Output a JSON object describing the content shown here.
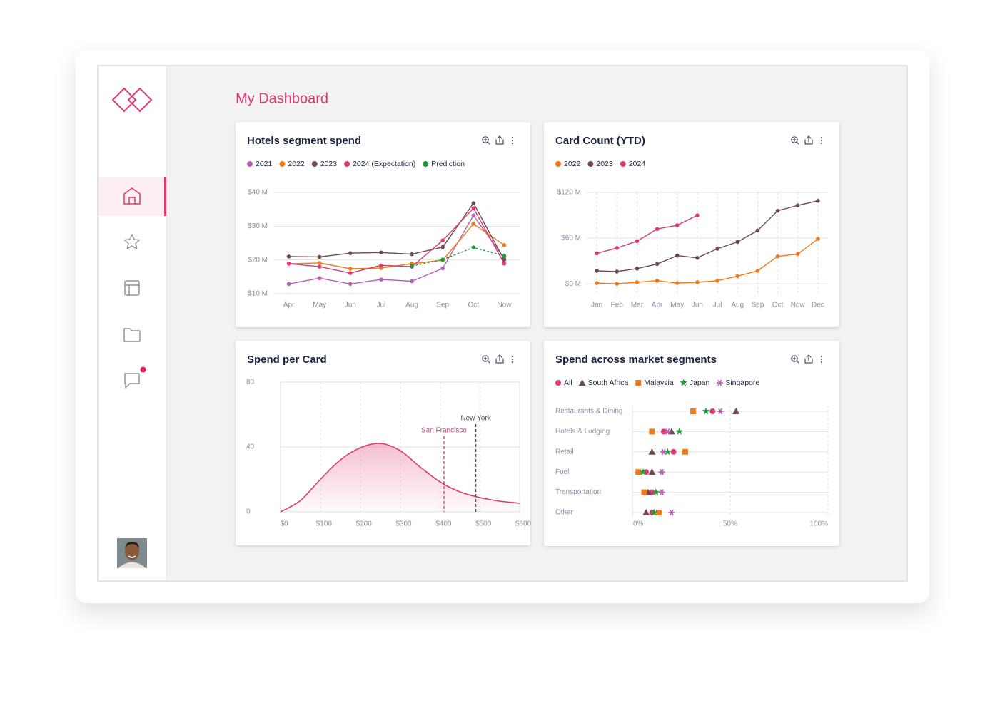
{
  "header": {
    "title": "My Dashboard"
  },
  "chart_data": [
    {
      "type": "line",
      "title": "Hotels segment spend",
      "categories": [
        "Apr",
        "May",
        "Jun",
        "Jul",
        "Aug",
        "Sep",
        "Oct",
        "Now"
      ],
      "series": [
        {
          "name": "2021",
          "color": "#b560b0",
          "values": [
            12.9,
            14.6,
            12.9,
            14.2,
            13.7,
            17.5,
            33.2,
            20.5
          ]
        },
        {
          "name": "2022",
          "color": "#f07a1a",
          "values": [
            18.9,
            19.1,
            17.4,
            17.6,
            18.9,
            19.9,
            30.7,
            24.4
          ]
        },
        {
          "name": "2023",
          "color": "#6e4a53",
          "values": [
            21,
            20.9,
            22,
            22.2,
            21.7,
            23.8,
            36.8,
            20
          ]
        },
        {
          "name": "2024 (Expectation)",
          "color": "#de3a72",
          "values": [
            18.9,
            18,
            16.1,
            18.4,
            18,
            25.8,
            35.3,
            18.9
          ]
        },
        {
          "name": "Prediction",
          "color": "#1f9e35",
          "dashed": true,
          "values": [
            null,
            null,
            null,
            null,
            18.2,
            20.1,
            23.7,
            21.2
          ]
        }
      ],
      "ylim": [
        10,
        40
      ],
      "yticks": [
        {
          "value": 10,
          "label": "$10 M"
        },
        {
          "value": 20,
          "label": "$20 M"
        },
        {
          "value": 30,
          "label": "$30 M"
        },
        {
          "value": 40,
          "label": "$40 M"
        }
      ],
      "grid": true
    },
    {
      "type": "line",
      "title": "Card Count (YTD)",
      "categories": [
        "Jan",
        "Feb",
        "Mar",
        "Apr",
        "May",
        "Jun",
        "Jul",
        "Aug",
        "Sep",
        "Oct",
        "Now",
        "Dec"
      ],
      "series": [
        {
          "name": "2022",
          "color": "#f07a1a",
          "values": [
            1,
            0,
            2,
            4,
            1,
            2,
            4,
            10,
            17,
            36,
            39,
            59
          ]
        },
        {
          "name": "2023",
          "color": "#6e4a53",
          "values": [
            17,
            16,
            20,
            26,
            37,
            34,
            46,
            55,
            70,
            96,
            103,
            109
          ]
        },
        {
          "name": "2024",
          "color": "#de3a72",
          "values": [
            40,
            47,
            56,
            72,
            77,
            90,
            null,
            null,
            null,
            null,
            null,
            null
          ]
        }
      ],
      "ylim": [
        -13,
        120
      ],
      "yticks": [
        {
          "value": 0,
          "label": "$0 M"
        },
        {
          "value": 60,
          "label": "$60 M"
        },
        {
          "value": 120,
          "label": "$120 M"
        }
      ],
      "grid": true,
      "xgrid": true
    },
    {
      "type": "area",
      "title": "Spend per Card",
      "x": [
        0,
        50,
        100,
        150,
        200,
        250,
        300,
        350,
        400,
        450,
        500,
        550,
        600
      ],
      "values": [
        0,
        7,
        20,
        32,
        39.5,
        42.2,
        37.8,
        27.7,
        18.5,
        12.3,
        8.8,
        6.6,
        5.3
      ],
      "color": "#de3a72",
      "xlim": [
        0,
        600
      ],
      "xticks": [
        {
          "value": 0,
          "label": "$0"
        },
        {
          "value": 100,
          "label": "$100"
        },
        {
          "value": 200,
          "label": "$200"
        },
        {
          "value": 300,
          "label": "$300"
        },
        {
          "value": 400,
          "label": "$400"
        },
        {
          "value": 500,
          "label": "$500"
        },
        {
          "value": 600,
          "label": "$600"
        }
      ],
      "ylim": [
        0,
        80
      ],
      "yticks": [
        0,
        40,
        80
      ],
      "grid": true,
      "annotations": [
        {
          "label": "San Francisco",
          "x": 410,
          "color": "#de3a72"
        },
        {
          "label": "New York",
          "x": 490,
          "color": "#5a4a50"
        }
      ]
    },
    {
      "type": "scatter",
      "title": "Spend across market segments",
      "categories": [
        "Restaurants & Dining",
        "Hotels & Lodging",
        "Retail",
        "Fuel",
        "Transportation",
        "Other"
      ],
      "series": [
        {
          "name": "All",
          "color": "#de3a72",
          "marker": "circle",
          "values": [
            41,
            16,
            21,
            7,
            10,
            10
          ]
        },
        {
          "name": "South Africa",
          "color": "#6e4a53",
          "marker": "triangle",
          "values": [
            53,
            20,
            10,
            10,
            8,
            7
          ]
        },
        {
          "name": "Malaysia",
          "color": "#f07a1a",
          "marker": "square",
          "values": [
            31,
            10,
            27,
            3,
            6,
            13.5
          ]
        },
        {
          "name": "Japan",
          "color": "#1f9e35",
          "marker": "star",
          "values": [
            37.6,
            24,
            18,
            5.5,
            12,
            11
          ]
        },
        {
          "name": "Singapore",
          "color": "#b560b0",
          "marker": "asterisk",
          "values": [
            45,
            18,
            16,
            15,
            15,
            20
          ]
        }
      ],
      "xlim": [
        0,
        100
      ],
      "xticks": [
        {
          "value": 0,
          "label": "0%"
        },
        {
          "value": 50,
          "label": "50%"
        },
        {
          "value": 100,
          "label": "100%"
        }
      ],
      "grid": true
    }
  ]
}
